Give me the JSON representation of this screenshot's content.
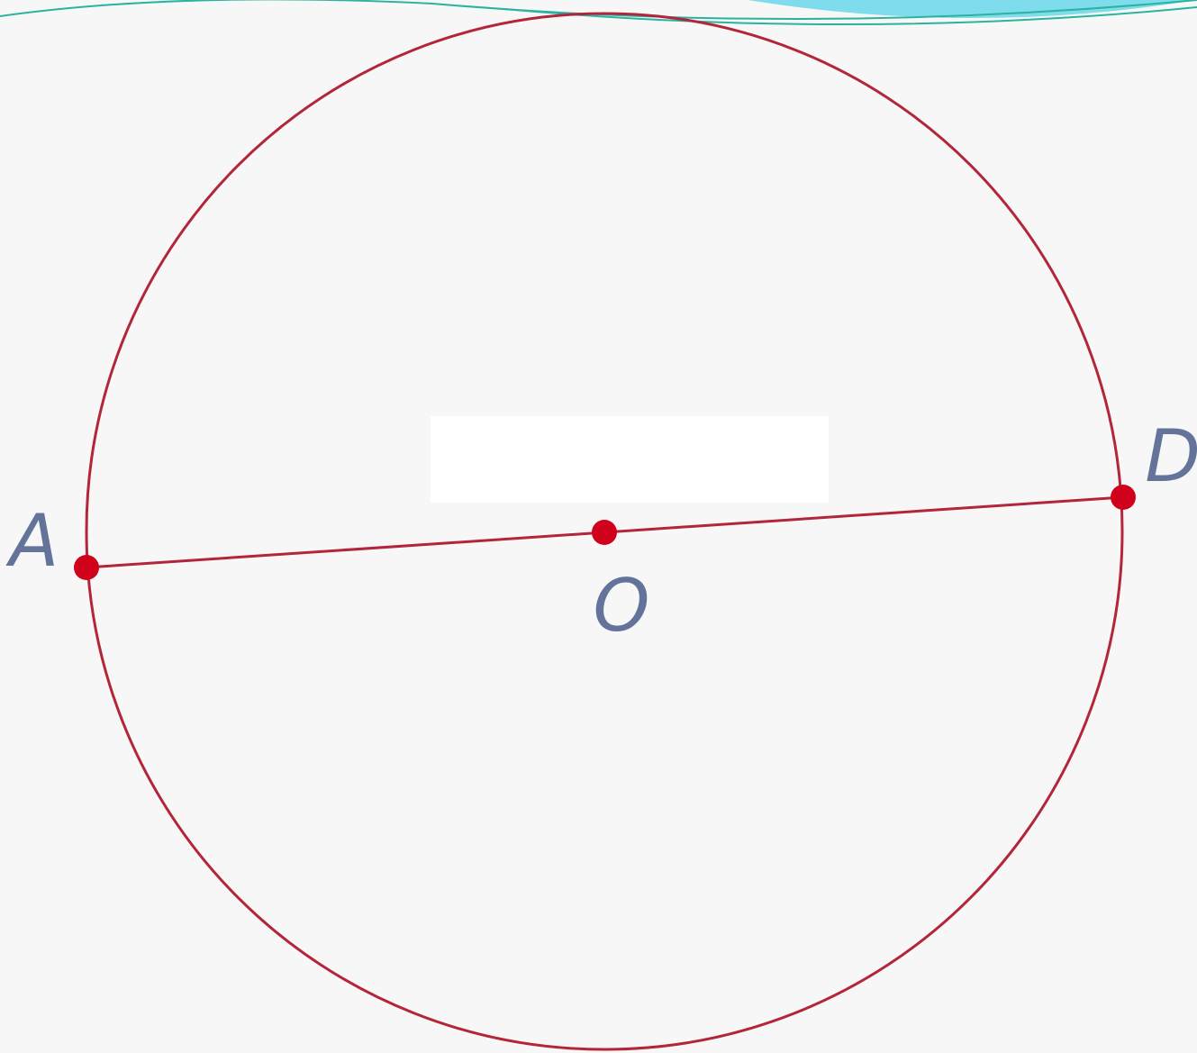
{
  "points": [
    {
      "label": "A"
    },
    {
      "label": "O"
    },
    {
      "label": "D"
    }
  ]
}
